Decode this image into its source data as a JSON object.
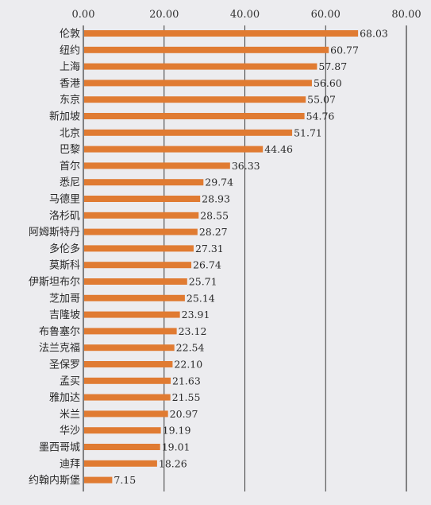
{
  "chart_data": {
    "type": "bar",
    "orientation": "horizontal",
    "title": "",
    "xlabel": "",
    "ylabel": "",
    "xlim": [
      0,
      80
    ],
    "x_ticks": [
      "0.00",
      "20.00",
      "40.00",
      "60.00",
      "80.00"
    ],
    "grid": true,
    "bar_color": "#e07b32",
    "categories": [
      "伦敦",
      "纽约",
      "上海",
      "香港",
      "东京",
      "新加坡",
      "北京",
      "巴黎",
      "首尔",
      "悉尼",
      "马德里",
      "洛杉矶",
      "阿姆斯特丹",
      "多伦多",
      "莫斯科",
      "伊斯坦布尔",
      "芝加哥",
      "吉隆坡",
      "布鲁塞尔",
      "法兰克福",
      "圣保罗",
      "孟买",
      "雅加达",
      "米兰",
      "华沙",
      "墨西哥城",
      "迪拜",
      "约翰内斯堡"
    ],
    "values": [
      68.03,
      60.77,
      57.87,
      56.6,
      55.07,
      54.76,
      51.71,
      44.46,
      36.33,
      29.74,
      28.93,
      28.55,
      28.27,
      27.31,
      26.74,
      25.71,
      25.14,
      23.91,
      23.12,
      22.54,
      22.1,
      21.63,
      21.55,
      20.97,
      19.19,
      19.01,
      18.26,
      7.15
    ],
    "value_labels": [
      "68.03",
      "60.77",
      "57.87",
      "56.60",
      "55.07",
      "54.76",
      "51.71",
      "44.46",
      "36.33",
      "29.74",
      "28.93",
      "28.55",
      "28.27",
      "27.31",
      "26.74",
      "25.71",
      "25.14",
      "23.91",
      "23.12",
      "22.54",
      "22.10",
      "21.63",
      "21.55",
      "20.97",
      "19.19",
      "19.01",
      "18.26",
      "7.15"
    ]
  }
}
